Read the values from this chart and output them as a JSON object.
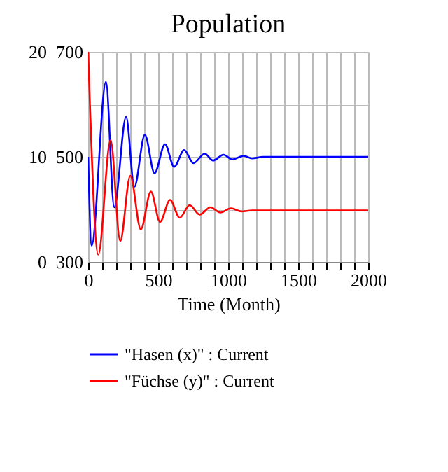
{
  "chart_data": {
    "type": "line",
    "title": "Population",
    "xlabel": "Time (Month)",
    "xlim": [
      0,
      2000
    ],
    "xticks": [
      0,
      {
        "value": 100,
        "label": null
      },
      {
        "value": 200,
        "label": null
      },
      {
        "value": 300,
        "label": null
      },
      {
        "value": 400,
        "label": null
      },
      500,
      {
        "value": 600,
        "label": null
      },
      {
        "value": 700,
        "label": null
      },
      {
        "value": 800,
        "label": null
      },
      {
        "value": 900,
        "label": null
      },
      1000,
      {
        "value": 1100,
        "label": null
      },
      {
        "value": 1200,
        "label": null
      },
      {
        "value": 1300,
        "label": null
      },
      {
        "value": 1400,
        "label": null
      },
      1500,
      {
        "value": 1600,
        "label": null
      },
      {
        "value": 1700,
        "label": null
      },
      {
        "value": 1800,
        "label": null
      },
      {
        "value": 1900,
        "label": null
      },
      2000
    ],
    "ylim": [
      300,
      700
    ],
    "yticks": [
      300,
      {
        "value": 400,
        "label": null
      },
      500,
      {
        "value": 600,
        "label": null
      },
      700
    ],
    "y2lim": [
      0,
      20
    ],
    "y2ticks": [
      0,
      10,
      20
    ],
    "grid": true,
    "legend": "bottom",
    "line_style": "solid",
    "series": [
      {
        "name": "\"Hasen (x)\" : Current",
        "color": "#0000ff",
        "x": [
          0,
          25,
          127,
          186,
          271,
          330,
          405,
          474,
          549,
          614,
          686,
          752,
          833,
          892,
          967,
          1029,
          1111,
          1170,
          1250,
          1300,
          2000
        ],
        "values": [
          500,
          331,
          643,
          404,
          576,
          443,
          542,
          469,
          524,
          481,
          513,
          488,
          506,
          493,
          504,
          495,
          502,
          497,
          500,
          500,
          500
        ]
      },
      {
        "name": "\"Füchse (y)\" : Current",
        "color": "#ff0000",
        "axis": "y2",
        "x": [
          0,
          72,
          160,
          229,
          301,
          376,
          448,
          513,
          585,
          654,
          725,
          797,
          873,
          944,
          1020,
          1095,
          1170,
          2000
        ],
        "values": [
          20,
          0.7,
          11.6,
          2.0,
          8.2,
          3.1,
          6.7,
          3.8,
          5.9,
          4.2,
          5.4,
          4.5,
          5.2,
          4.7,
          5.1,
          4.8,
          4.9,
          4.9
        ]
      }
    ]
  }
}
